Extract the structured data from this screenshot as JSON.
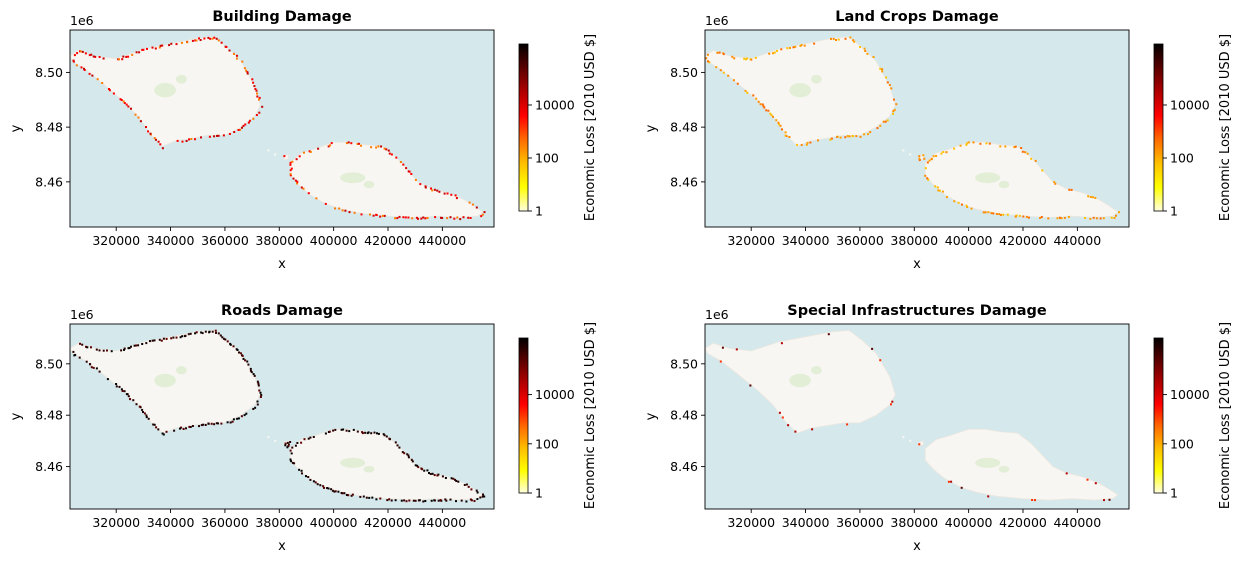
{
  "figure": {
    "offset_label": "1e6"
  },
  "colorbar": {
    "label": "Economic Loss [2010 USD $]",
    "scale": "log",
    "ticks": [
      "1",
      "100",
      "10000"
    ],
    "range": [
      1,
      2000000
    ],
    "colormap": "hot_r",
    "colors": [
      "#ffffe0",
      "#ffff00",
      "#ffc000",
      "#ff6a00",
      "#ff0000",
      "#b00000",
      "#5a0000",
      "#000000"
    ]
  },
  "map_colors": {
    "sea": "#d5e8ec",
    "land": "#f8f6f2",
    "vegetation": "#e3eed7",
    "land_edge": "#ece7df"
  },
  "chart_data": [
    {
      "type": "heatmap",
      "title": "Building Damage",
      "xlabel": "x",
      "ylabel": "y",
      "xticks": [
        "320000",
        "340000",
        "360000",
        "380000",
        "400000",
        "420000",
        "440000"
      ],
      "yticks": [
        "8.46",
        "8.48",
        "8.50"
      ],
      "xlim": [
        303000,
        459000
      ],
      "ylim": [
        8.4435,
        8.5155
      ],
      "damage_level": "moderate-high",
      "damage_colors": [
        "#ff0000",
        "#e00000",
        "#ff7b00",
        "#c40000"
      ],
      "damage_density": 0.55
    },
    {
      "type": "heatmap",
      "title": "Land Crops Damage",
      "xlabel": "x",
      "ylabel": "y",
      "xticks": [
        "320000",
        "340000",
        "360000",
        "380000",
        "400000",
        "420000",
        "440000"
      ],
      "yticks": [
        "8.46",
        "8.48",
        "8.50"
      ],
      "xlim": [
        303000,
        459000
      ],
      "ylim": [
        8.4435,
        8.5155
      ],
      "damage_level": "moderate",
      "damage_colors": [
        "#ffa000",
        "#ff8a00",
        "#ffc000",
        "#ff6a00"
      ],
      "damage_density": 0.45
    },
    {
      "type": "heatmap",
      "title": "Roads Damage",
      "xlabel": "x",
      "ylabel": "y",
      "xticks": [
        "320000",
        "340000",
        "360000",
        "380000",
        "400000",
        "420000",
        "440000"
      ],
      "yticks": [
        "8.46",
        "8.48",
        "8.50"
      ],
      "xlim": [
        303000,
        459000
      ],
      "ylim": [
        8.4435,
        8.5155
      ],
      "damage_level": "high",
      "damage_colors": [
        "#000000",
        "#2a0000",
        "#5a0000",
        "#1a0000"
      ],
      "damage_density": 0.75
    },
    {
      "type": "heatmap",
      "title": "Special Infrastructures Damage",
      "xlabel": "x",
      "ylabel": "y",
      "xticks": [
        "320000",
        "340000",
        "360000",
        "380000",
        "400000",
        "420000",
        "440000"
      ],
      "yticks": [
        "8.46",
        "8.48",
        "8.50"
      ],
      "xlim": [
        303000,
        459000
      ],
      "ylim": [
        8.4435,
        8.5155
      ],
      "damage_level": "sparse",
      "damage_colors": [
        "#b00000",
        "#5a0000",
        "#ff3000"
      ],
      "damage_density": 0.07
    }
  ]
}
